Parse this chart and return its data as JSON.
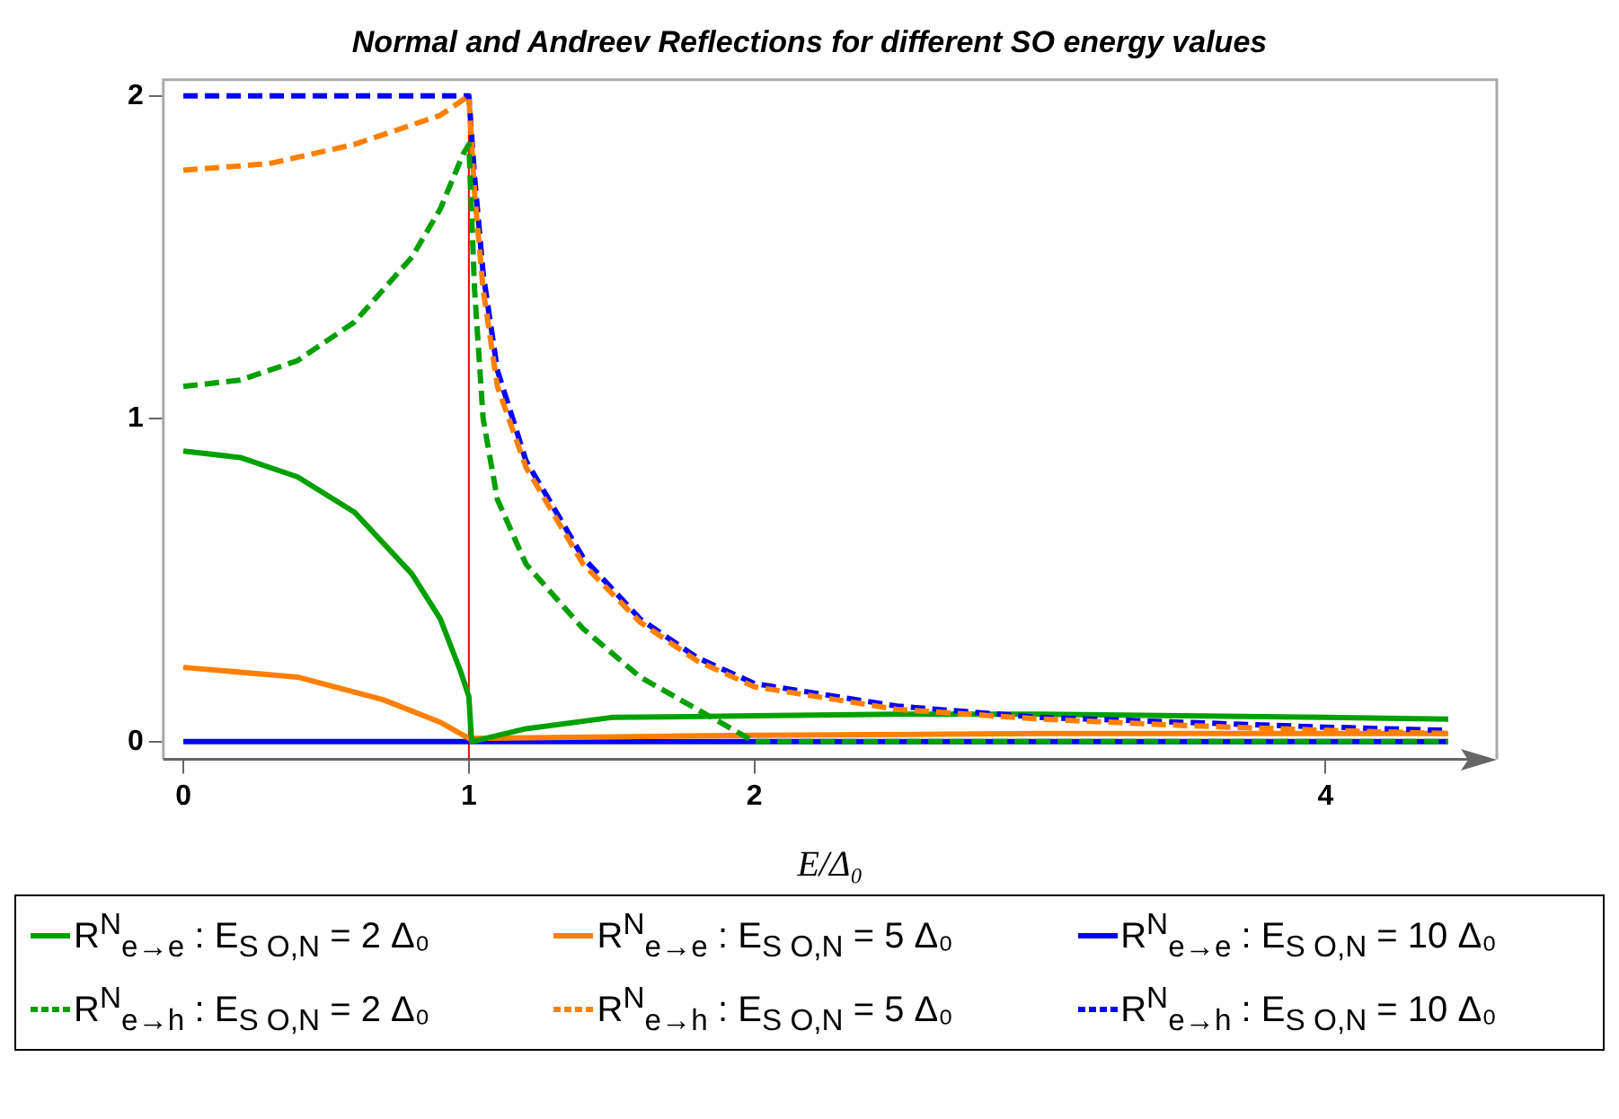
{
  "chart_data": {
    "type": "line",
    "title": "Normal and Andreev Reflections for different SO energy values",
    "xlabel": "E/Δ₀",
    "xlim": [
      -0.07,
      4.6
    ],
    "xticks": [
      0,
      1,
      2,
      4
    ],
    "ylim": [
      -0.055,
      2.05
    ],
    "yticks": [
      0,
      1,
      2
    ],
    "grid": false,
    "legend": "bottom",
    "marker": "none",
    "ref_lines": [
      {
        "axis": "x",
        "value": 1,
        "color": "#ff0000",
        "line_style": "solid"
      }
    ],
    "series": [
      {
        "name": "R$^{N}$$_{e→e}$ :  E$_{S O,N}$ = 2 Δ₀",
        "color": "#00a000",
        "line_style": "solid",
        "x": [
          0,
          0.2,
          0.4,
          0.6,
          0.8,
          0.9,
          0.97,
          1.0,
          1.01,
          1.2,
          1.5,
          2,
          2.5,
          3,
          3.5,
          4,
          4.43
        ],
        "values": [
          0.9,
          0.88,
          0.82,
          0.71,
          0.52,
          0.38,
          0.22,
          0.14,
          0.0,
          0.04,
          0.075,
          0.08,
          0.085,
          0.085,
          0.08,
          0.075,
          0.07
        ]
      },
      {
        "name": "R$^{N}$$_{e→e}$ :  E$_{S O,N}$ = 5 Δ₀",
        "color": "#ff8000",
        "line_style": "solid",
        "x": [
          0,
          0.4,
          0.7,
          0.9,
          1.0,
          1.5,
          2,
          3,
          4.43
        ],
        "values": [
          0.23,
          0.2,
          0.13,
          0.06,
          0.01,
          0.015,
          0.02,
          0.025,
          0.025
        ]
      },
      {
        "name": "R$^{N}$$_{e→e}$ :  E$_{S O,N}$ = 10 Δ₀",
        "color": "#0000ff",
        "line_style": "solid",
        "x": [
          0,
          1,
          2,
          3,
          4.43
        ],
        "values": [
          0,
          0,
          0,
          0,
          0
        ]
      },
      {
        "name": "R$^{N}$$_{e→h}$ :  E$_{S O,N}$ = 2 Δ₀",
        "color": "#00a000",
        "line_style": "dashed",
        "x": [
          0,
          0.2,
          0.4,
          0.6,
          0.8,
          0.9,
          0.98,
          1.0,
          1.02,
          1.05,
          1.1,
          1.2,
          1.4,
          1.6,
          1.8,
          2.0,
          3,
          4.43
        ],
        "values": [
          1.1,
          1.12,
          1.18,
          1.3,
          1.5,
          1.65,
          1.82,
          1.85,
          1.4,
          1.0,
          0.75,
          0.55,
          0.35,
          0.2,
          0.1,
          0.0,
          0.0,
          0.0
        ]
      },
      {
        "name": "R$^{N}$$_{e→h}$ :  E$_{S O,N}$ = 5 Δ₀",
        "color": "#ff8000",
        "line_style": "dashed",
        "x": [
          0,
          0.3,
          0.6,
          0.9,
          1.0,
          1.02,
          1.05,
          1.1,
          1.2,
          1.4,
          1.6,
          1.8,
          2.0,
          2.5,
          3,
          3.5,
          4,
          4.43
        ],
        "values": [
          1.77,
          1.79,
          1.85,
          1.94,
          2.0,
          1.7,
          1.4,
          1.1,
          0.85,
          0.55,
          0.37,
          0.25,
          0.17,
          0.1,
          0.07,
          0.05,
          0.035,
          0.025
        ]
      },
      {
        "name": "R$^{N}$$_{e→h}$ :  E$_{S O,N}$ = 10 Δ₀",
        "color": "#0000ff",
        "line_style": "dashed",
        "x": [
          0,
          1.0,
          1.02,
          1.05,
          1.1,
          1.2,
          1.4,
          1.6,
          1.8,
          2.0,
          2.5,
          3,
          3.5,
          4,
          4.43
        ],
        "values": [
          2,
          2,
          1.75,
          1.45,
          1.15,
          0.87,
          0.57,
          0.38,
          0.26,
          0.18,
          0.11,
          0.075,
          0.06,
          0.045,
          0.035
        ]
      }
    ]
  }
}
